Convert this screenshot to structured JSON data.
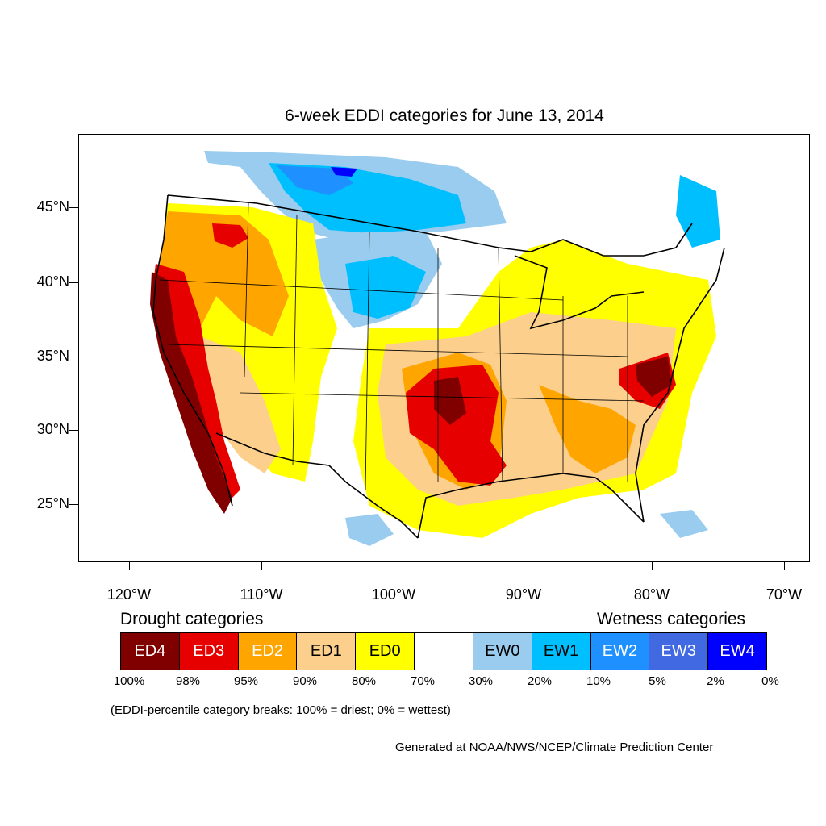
{
  "title": "6-week EDDI categories for June 13, 2014",
  "lat_labels": [
    "45°N",
    "40°N",
    "35°N",
    "30°N",
    "25°N"
  ],
  "lon_labels": [
    "120°W",
    "110°W",
    "100°W",
    "90°W",
    "80°W",
    "70°W"
  ],
  "legend": {
    "drought_header": "Drought categories",
    "wetness_header": "Wetness categories",
    "categories": [
      {
        "label": "ED4",
        "color": "#800000",
        "text_color": "#ffffff"
      },
      {
        "label": "ED3",
        "color": "#e60000",
        "text_color": "#ffffff"
      },
      {
        "label": "ED2",
        "color": "#ffa500",
        "text_color": "#ffffff"
      },
      {
        "label": "ED1",
        "color": "#fcd08c",
        "text_color": "#000000"
      },
      {
        "label": "ED0",
        "color": "#ffff00",
        "text_color": "#000000"
      },
      {
        "label": "",
        "color": "#ffffff",
        "text_color": "#000000"
      },
      {
        "label": "EW0",
        "color": "#99ccee",
        "text_color": "#000000"
      },
      {
        "label": "EW1",
        "color": "#00bfff",
        "text_color": "#000000"
      },
      {
        "label": "EW2",
        "color": "#1e90ff",
        "text_color": "#ffffff"
      },
      {
        "label": "EW3",
        "color": "#4169e1",
        "text_color": "#ffffff"
      },
      {
        "label": "EW4",
        "color": "#0000ff",
        "text_color": "#ffffff"
      }
    ],
    "breaks": [
      "100%",
      "98%",
      "95%",
      "90%",
      "80%",
      "70%",
      "30%",
      "20%",
      "10%",
      "5%",
      "2%",
      "0%"
    ]
  },
  "note": "(EDDI-percentile category breaks: 100% = driest; 0% = wettest)",
  "credit": "Generated at NOAA/NWS/NCEP/Climate Prediction Center"
}
